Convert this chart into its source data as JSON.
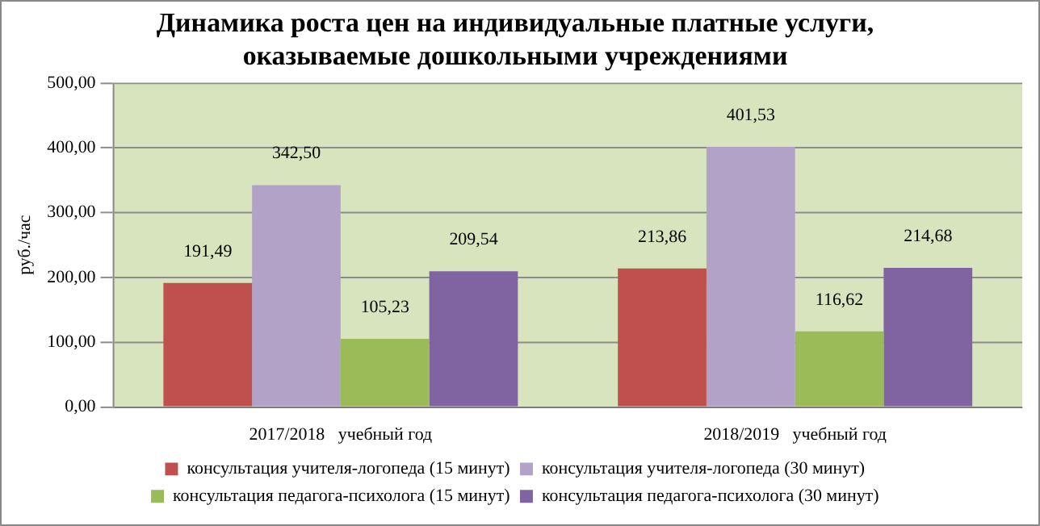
{
  "chart_data": {
    "type": "bar",
    "title": [
      "Динамика роста цен на индивидуальные платные услуги,",
      "оказываемые дошкольными учреждениями"
    ],
    "ylabel": "руб./час",
    "categories": [
      "2017/2018   учебный год",
      "2018/2019   учебный год"
    ],
    "series": [
      {
        "name": "консультация учителя-логопеда (15 минут)",
        "color": "#c0504d",
        "values": [
          191.49,
          213.86
        ],
        "value_labels": [
          "191,49",
          "213,86"
        ]
      },
      {
        "name": "консультация учителя-логопеда (30 минут)",
        "color": "#b3a2c7",
        "values": [
          342.5,
          401.53
        ],
        "value_labels": [
          "342,50",
          "401,53"
        ]
      },
      {
        "name": "консультация педагога-психолога (15 минут)",
        "color": "#9bbb59",
        "values": [
          105.23,
          116.62
        ],
        "value_labels": [
          "105,23",
          "116,62"
        ]
      },
      {
        "name": "консультация педагога-психолога (30 минут)",
        "color": "#8064a2",
        "values": [
          209.54,
          214.68
        ],
        "value_labels": [
          "209,54",
          "214,68"
        ]
      }
    ],
    "ylim": [
      0,
      500
    ],
    "yticks": [
      {
        "value": 0,
        "label": "0,00"
      },
      {
        "value": 100,
        "label": "100,00"
      },
      {
        "value": 200,
        "label": "200,00"
      },
      {
        "value": 300,
        "label": "300,00"
      },
      {
        "value": 400,
        "label": "400,00"
      },
      {
        "value": 500,
        "label": "500,00"
      }
    ],
    "grid": "y",
    "legend": "bottom"
  }
}
